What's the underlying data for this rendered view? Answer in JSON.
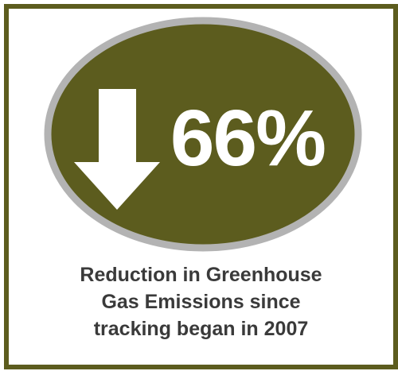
{
  "stat": {
    "value": "66%",
    "direction_icon": "arrow-down-icon"
  },
  "caption": {
    "lines": [
      "Reduction in Greenhouse",
      "Gas Emissions since",
      "tracking began in 2007"
    ]
  },
  "colors": {
    "border": "#5c5c1e",
    "ellipse_fill": "#5c5c1e",
    "ellipse_ring": "#b3b3b3",
    "text_dark": "#3a3a3a",
    "text_light": "#ffffff"
  }
}
